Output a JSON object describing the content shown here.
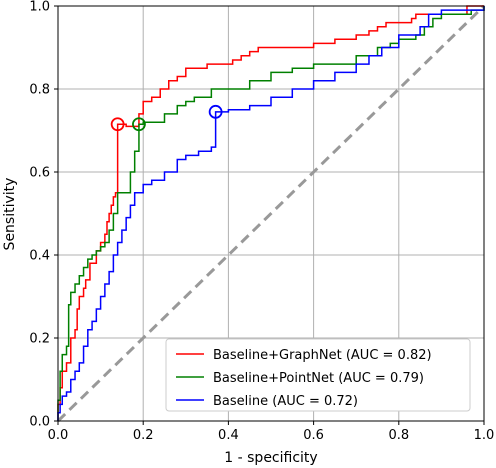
{
  "chart_data": {
    "type": "line",
    "title": "",
    "xlabel": "1 - specificity",
    "ylabel": "Sensitivity",
    "xlim": [
      0,
      1
    ],
    "ylim": [
      0,
      1
    ],
    "xticks": [
      "0.0",
      "0.2",
      "0.4",
      "0.6",
      "0.8",
      "1.0"
    ],
    "yticks": [
      "0.0",
      "0.2",
      "0.4",
      "0.6",
      "0.8",
      "1.0"
    ],
    "grid": true,
    "legend_position": "lower-right",
    "series": [
      {
        "name": "Baseline+GraphNet (AUC = 0.82)",
        "color": "#ff0000",
        "marker": {
          "x": 0.14,
          "y": 0.715
        },
        "points": [
          [
            0,
            0
          ],
          [
            0,
            0.04
          ],
          [
            0.005,
            0.08
          ],
          [
            0.01,
            0.12
          ],
          [
            0.02,
            0.14
          ],
          [
            0.03,
            0.17
          ],
          [
            0.03,
            0.2
          ],
          [
            0.04,
            0.22
          ],
          [
            0.045,
            0.27
          ],
          [
            0.05,
            0.3
          ],
          [
            0.06,
            0.32
          ],
          [
            0.065,
            0.34
          ],
          [
            0.075,
            0.38
          ],
          [
            0.09,
            0.41
          ],
          [
            0.1,
            0.43
          ],
          [
            0.11,
            0.45
          ],
          [
            0.115,
            0.48
          ],
          [
            0.12,
            0.5
          ],
          [
            0.125,
            0.52
          ],
          [
            0.13,
            0.54
          ],
          [
            0.135,
            0.55
          ],
          [
            0.14,
            0.57
          ],
          [
            0.14,
            0.715
          ],
          [
            0.15,
            0.715
          ],
          [
            0.16,
            0.71
          ],
          [
            0.18,
            0.71
          ],
          [
            0.19,
            0.74
          ],
          [
            0.2,
            0.77
          ],
          [
            0.22,
            0.78
          ],
          [
            0.24,
            0.8
          ],
          [
            0.26,
            0.82
          ],
          [
            0.28,
            0.83
          ],
          [
            0.3,
            0.85
          ],
          [
            0.35,
            0.86
          ],
          [
            0.4,
            0.86
          ],
          [
            0.41,
            0.87
          ],
          [
            0.43,
            0.88
          ],
          [
            0.45,
            0.89
          ],
          [
            0.47,
            0.9
          ],
          [
            0.5,
            0.9
          ],
          [
            0.55,
            0.9
          ],
          [
            0.6,
            0.91
          ],
          [
            0.65,
            0.92
          ],
          [
            0.7,
            0.93
          ],
          [
            0.73,
            0.94
          ],
          [
            0.75,
            0.95
          ],
          [
            0.77,
            0.96
          ],
          [
            0.8,
            0.96
          ],
          [
            0.83,
            0.97
          ],
          [
            0.84,
            0.98
          ],
          [
            0.9,
            0.98
          ],
          [
            0.96,
            0.99
          ],
          [
            0.96,
            1.0
          ],
          [
            1.0,
            1.0
          ]
        ]
      },
      {
        "name": "Baseline+PointNet (AUC = 0.79)",
        "color": "#008000",
        "marker": {
          "x": 0.19,
          "y": 0.715
        },
        "points": [
          [
            0,
            0
          ],
          [
            0,
            0.05
          ],
          [
            0.005,
            0.12
          ],
          [
            0.01,
            0.16
          ],
          [
            0.02,
            0.18
          ],
          [
            0.025,
            0.28
          ],
          [
            0.03,
            0.31
          ],
          [
            0.04,
            0.33
          ],
          [
            0.05,
            0.35
          ],
          [
            0.06,
            0.37
          ],
          [
            0.07,
            0.39
          ],
          [
            0.08,
            0.4
          ],
          [
            0.09,
            0.41
          ],
          [
            0.1,
            0.42
          ],
          [
            0.11,
            0.43
          ],
          [
            0.12,
            0.46
          ],
          [
            0.13,
            0.5
          ],
          [
            0.14,
            0.55
          ],
          [
            0.16,
            0.55
          ],
          [
            0.17,
            0.6
          ],
          [
            0.18,
            0.65
          ],
          [
            0.19,
            0.715
          ],
          [
            0.2,
            0.72
          ],
          [
            0.22,
            0.72
          ],
          [
            0.25,
            0.74
          ],
          [
            0.28,
            0.76
          ],
          [
            0.3,
            0.77
          ],
          [
            0.32,
            0.78
          ],
          [
            0.34,
            0.78
          ],
          [
            0.36,
            0.8
          ],
          [
            0.4,
            0.8
          ],
          [
            0.45,
            0.82
          ],
          [
            0.5,
            0.84
          ],
          [
            0.55,
            0.85
          ],
          [
            0.6,
            0.86
          ],
          [
            0.65,
            0.86
          ],
          [
            0.7,
            0.88
          ],
          [
            0.75,
            0.9
          ],
          [
            0.78,
            0.91
          ],
          [
            0.8,
            0.92
          ],
          [
            0.84,
            0.93
          ],
          [
            0.86,
            0.95
          ],
          [
            0.88,
            0.97
          ],
          [
            0.9,
            0.98
          ],
          [
            0.95,
            0.98
          ],
          [
            0.97,
            0.99
          ],
          [
            1.0,
            1.0
          ]
        ]
      },
      {
        "name": "Baseline (AUC = 0.72)",
        "color": "#0000ff",
        "marker": {
          "x": 0.37,
          "y": 0.745
        },
        "points": [
          [
            0,
            0
          ],
          [
            0,
            0.02
          ],
          [
            0.005,
            0.04
          ],
          [
            0.01,
            0.06
          ],
          [
            0.02,
            0.07
          ],
          [
            0.03,
            0.1
          ],
          [
            0.04,
            0.12
          ],
          [
            0.05,
            0.14
          ],
          [
            0.06,
            0.18
          ],
          [
            0.07,
            0.22
          ],
          [
            0.08,
            0.24
          ],
          [
            0.09,
            0.27
          ],
          [
            0.1,
            0.3
          ],
          [
            0.11,
            0.33
          ],
          [
            0.12,
            0.36
          ],
          [
            0.13,
            0.4
          ],
          [
            0.14,
            0.43
          ],
          [
            0.15,
            0.46
          ],
          [
            0.16,
            0.49
          ],
          [
            0.17,
            0.52
          ],
          [
            0.18,
            0.55
          ],
          [
            0.2,
            0.57
          ],
          [
            0.22,
            0.58
          ],
          [
            0.25,
            0.6
          ],
          [
            0.28,
            0.63
          ],
          [
            0.3,
            0.64
          ],
          [
            0.33,
            0.65
          ],
          [
            0.36,
            0.66
          ],
          [
            0.37,
            0.68
          ],
          [
            0.37,
            0.745
          ],
          [
            0.38,
            0.745
          ],
          [
            0.4,
            0.75
          ],
          [
            0.45,
            0.76
          ],
          [
            0.5,
            0.78
          ],
          [
            0.55,
            0.8
          ],
          [
            0.6,
            0.82
          ],
          [
            0.65,
            0.84
          ],
          [
            0.7,
            0.86
          ],
          [
            0.73,
            0.88
          ],
          [
            0.76,
            0.9
          ],
          [
            0.8,
            0.93
          ],
          [
            0.85,
            0.95
          ],
          [
            0.87,
            0.98
          ],
          [
            0.9,
            0.99
          ],
          [
            0.95,
            0.99
          ],
          [
            1.0,
            1.0
          ]
        ]
      }
    ],
    "reference_line": {
      "from": [
        0,
        0
      ],
      "to": [
        1,
        1
      ],
      "color": "#999999",
      "style": "dashed"
    }
  }
}
